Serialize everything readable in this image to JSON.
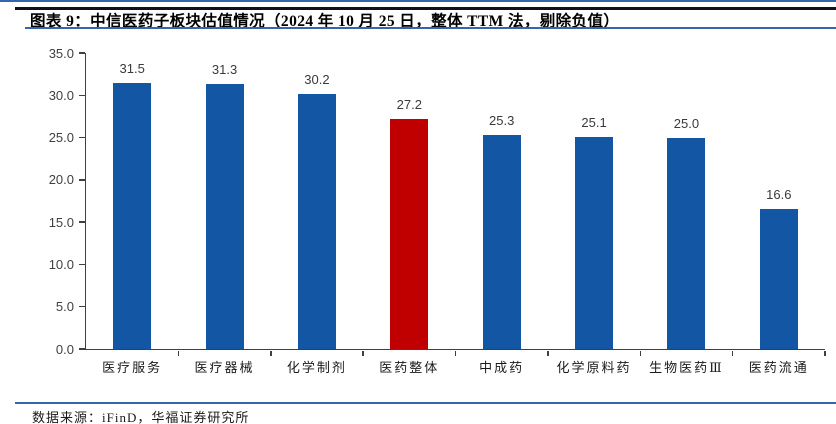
{
  "header": {
    "title": "图表 9：中信医药子板块估值情况（2024 年 10 月 25 日，整体 TTM 法，剔除负值）"
  },
  "footer": {
    "source": "数据来源：iFinD，华福证券研究所"
  },
  "colors": {
    "bar_default": "#1356a4",
    "bar_highlight": "#c00000",
    "rule_blue": "#3465ad",
    "rule_dark": "#10101e",
    "axis": "#404040"
  },
  "chart_data": {
    "type": "bar",
    "title": "中信医药子板块估值情况（2024 年 10 月 25 日，整体 TTM 法，剔除负值）",
    "categories": [
      "医疗服务",
      "医疗器械",
      "化学制剂",
      "医药整体",
      "中成药",
      "化学原料药",
      "生物医药Ⅲ",
      "医药流通"
    ],
    "values": [
      31.5,
      31.3,
      30.2,
      27.2,
      25.3,
      25.1,
      25.0,
      16.6
    ],
    "value_labels": [
      "31.5",
      "31.3",
      "30.2",
      "27.2",
      "25.3",
      "25.1",
      "25.0",
      "16.6"
    ],
    "highlight_index": 3,
    "xlabel": "",
    "ylabel": "",
    "ylim": [
      0,
      35
    ],
    "ytick_step": 5,
    "ytick_labels": [
      "0.0",
      "5.0",
      "10.0",
      "15.0",
      "20.0",
      "25.0",
      "30.0",
      "35.0"
    ],
    "grid": false,
    "legend": "none"
  }
}
